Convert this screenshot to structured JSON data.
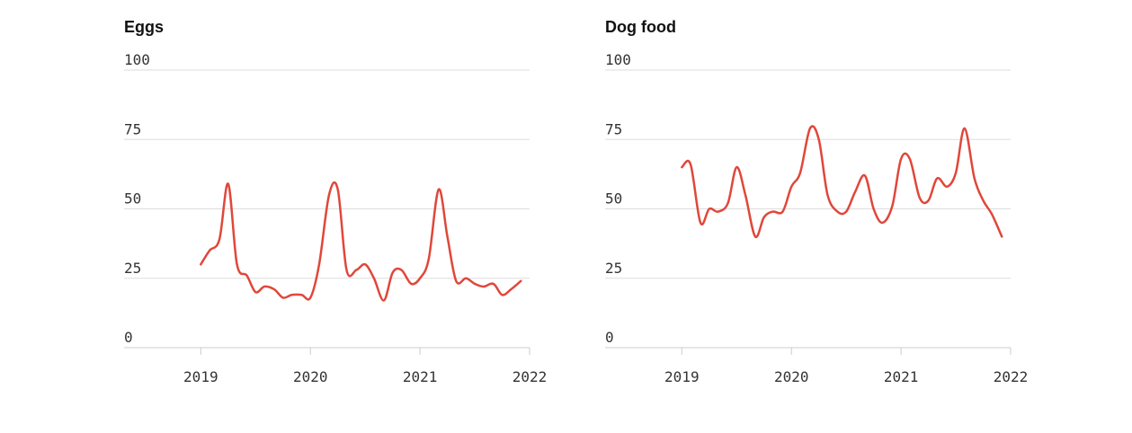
{
  "chart_data": [
    {
      "type": "line",
      "title": "Eggs",
      "xlabel": "",
      "ylabel": "",
      "ylim": [
        0,
        100
      ],
      "xlim": [
        2018.3,
        2022
      ],
      "yticks": [
        "0",
        "25",
        "50",
        "75",
        "100"
      ],
      "xticks": [
        "2019",
        "2020",
        "2021",
        "2022"
      ],
      "grid": true,
      "line_color": "#e0473a",
      "series": [
        {
          "x": [
            2019.0,
            2019.08,
            2019.17,
            2019.25,
            2019.33,
            2019.42,
            2019.5,
            2019.58,
            2019.67,
            2019.75,
            2019.83,
            2019.92,
            2020.0,
            2020.08,
            2020.17,
            2020.25,
            2020.33,
            2020.42,
            2020.5,
            2020.58,
            2020.67,
            2020.75,
            2020.83,
            2020.92,
            2021.0,
            2021.08,
            2021.17,
            2021.25,
            2021.33,
            2021.42,
            2021.5,
            2021.58,
            2021.67,
            2021.75,
            2021.83,
            2021.92
          ],
          "values": [
            30,
            35,
            39,
            59,
            30,
            26,
            20,
            22,
            21,
            18,
            19,
            19,
            18,
            30,
            55,
            57,
            28,
            28,
            30,
            25,
            17,
            27,
            28,
            23,
            25,
            32,
            57,
            40,
            24,
            25,
            23,
            22,
            23,
            19,
            21,
            24
          ]
        }
      ]
    },
    {
      "type": "line",
      "title": "Dog food",
      "xlabel": "",
      "ylabel": "",
      "ylim": [
        0,
        100
      ],
      "xlim": [
        2018.3,
        2022
      ],
      "yticks": [
        "0",
        "25",
        "50",
        "75",
        "100"
      ],
      "xticks": [
        "2019",
        "2020",
        "2021",
        "2022"
      ],
      "grid": true,
      "line_color": "#e0473a",
      "series": [
        {
          "x": [
            2019.0,
            2019.08,
            2019.17,
            2019.25,
            2019.33,
            2019.42,
            2019.5,
            2019.58,
            2019.67,
            2019.75,
            2019.83,
            2019.92,
            2020.0,
            2020.08,
            2020.17,
            2020.25,
            2020.33,
            2020.42,
            2020.5,
            2020.58,
            2020.67,
            2020.75,
            2020.83,
            2020.92,
            2021.0,
            2021.08,
            2021.17,
            2021.25,
            2021.33,
            2021.42,
            2021.5,
            2021.58,
            2021.67,
            2021.75,
            2021.83,
            2021.92
          ],
          "values": [
            65,
            66,
            45,
            50,
            49,
            52,
            65,
            55,
            40,
            47,
            49,
            49,
            58,
            63,
            79,
            75,
            55,
            49,
            49,
            56,
            62,
            50,
            45,
            51,
            68,
            68,
            54,
            53,
            61,
            58,
            63,
            79,
            61,
            53,
            48,
            40
          ]
        }
      ]
    }
  ]
}
